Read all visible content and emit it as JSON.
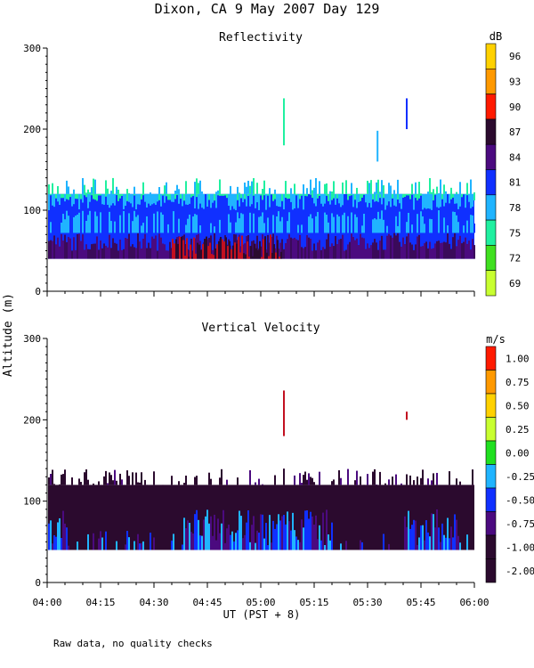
{
  "figure": {
    "title": "Dixon, CA  9 May 2007  Day 129",
    "footnote": "Raw data, no quality checks",
    "ylabel": "Altitude (m)",
    "xlabel": "UT  (PST + 8)"
  },
  "chart_data": [
    {
      "type": "heatmap",
      "title": "Reflectivity",
      "xlabel": "UT  (PST + 8)",
      "ylabel": "Altitude (m)",
      "xlim_minutes": [
        0,
        120
      ],
      "ylim": [
        0,
        300
      ],
      "x_ticks": [
        "04:00",
        "04:15",
        "04:30",
        "04:45",
        "05:00",
        "05:15",
        "05:30",
        "05:45",
        "06:00"
      ],
      "y_ticks": [
        0,
        100,
        200,
        300
      ],
      "colorbar": {
        "unit": "dB",
        "labels": [
          "96",
          "93",
          "90",
          "87",
          "84",
          "81",
          "78",
          "75",
          "72",
          "69"
        ],
        "colors": [
          "#ffd100",
          "#ff9900",
          "#ff1a00",
          "#2b0a2e",
          "#4b0a7f",
          "#1030ff",
          "#20b4ff",
          "#20f0a0",
          "#40e020",
          "#c8ff30"
        ]
      },
      "echo": {
        "base_altitude": 40,
        "layer_top": 120,
        "spike_top": 140,
        "bands": [
          {
            "label": "78",
            "top": 120
          },
          {
            "label": "81",
            "top": 92
          },
          {
            "label": "84",
            "top": 70
          },
          {
            "label": "87",
            "top": 55
          }
        ],
        "plumes": [
          {
            "time_min": 66.5,
            "bottom": 180,
            "top": 238
          },
          {
            "time_min": 92.8,
            "bottom": 160,
            "top": 198
          },
          {
            "time_min": 101.0,
            "bottom": 200,
            "top": 238
          }
        ]
      }
    },
    {
      "type": "heatmap",
      "title": "Vertical Velocity",
      "xlabel": "UT  (PST + 8)",
      "ylabel": "Altitude (m)",
      "xlim_minutes": [
        0,
        120
      ],
      "ylim": [
        0,
        300
      ],
      "x_ticks": [
        "04:00",
        "04:15",
        "04:30",
        "04:45",
        "05:00",
        "05:15",
        "05:30",
        "05:45",
        "06:00"
      ],
      "y_ticks": [
        0,
        100,
        200,
        300
      ],
      "colorbar": {
        "unit": "m/s",
        "labels": [
          "1.00",
          "0.75",
          "0.50",
          "0.25",
          "0.00",
          "-0.25",
          "-0.50",
          "-0.75",
          "-1.00",
          "-2.00"
        ],
        "colors": [
          "#ff1a00",
          "#ff9900",
          "#ffd100",
          "#c8ff30",
          "#20e020",
          "#20b4ff",
          "#1030ff",
          "#4b0a7f",
          "#2b0a2e",
          "#2b0a2e"
        ]
      },
      "echo": {
        "base_altitude": 40,
        "layer_top": 120,
        "spike_top": 140,
        "plumes": [
          {
            "time_min": 66.5,
            "bottom": 180,
            "top": 236
          },
          {
            "time_min": 101.0,
            "bottom": 200,
            "top": 210
          }
        ]
      }
    }
  ]
}
